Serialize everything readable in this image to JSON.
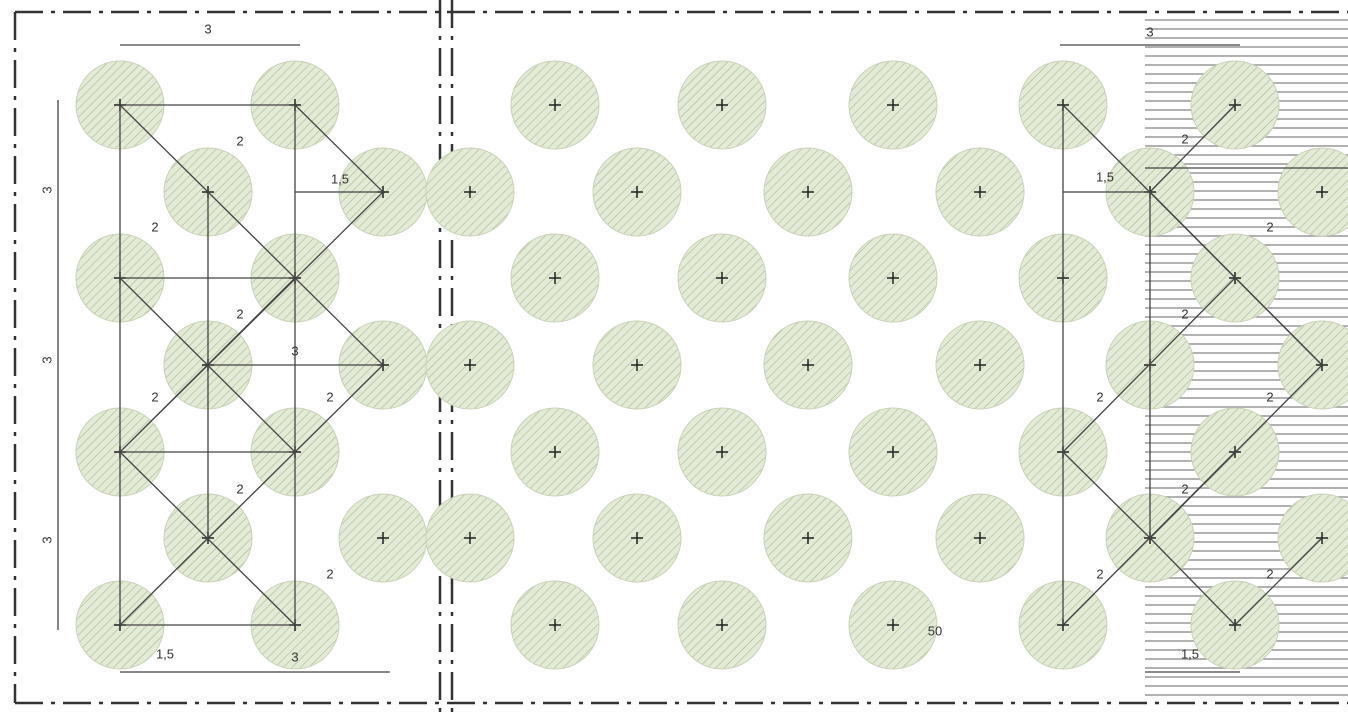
{
  "labels": [
    "3",
    "3",
    "1,5",
    "3",
    "1,5",
    "3",
    "1,5",
    "50",
    "3",
    "3",
    "3",
    "2",
    "2",
    "2",
    "2",
    "2",
    "2",
    "2",
    "2",
    "2",
    "2",
    "2",
    "2",
    "2",
    "2",
    "2",
    "1,5"
  ]
}
